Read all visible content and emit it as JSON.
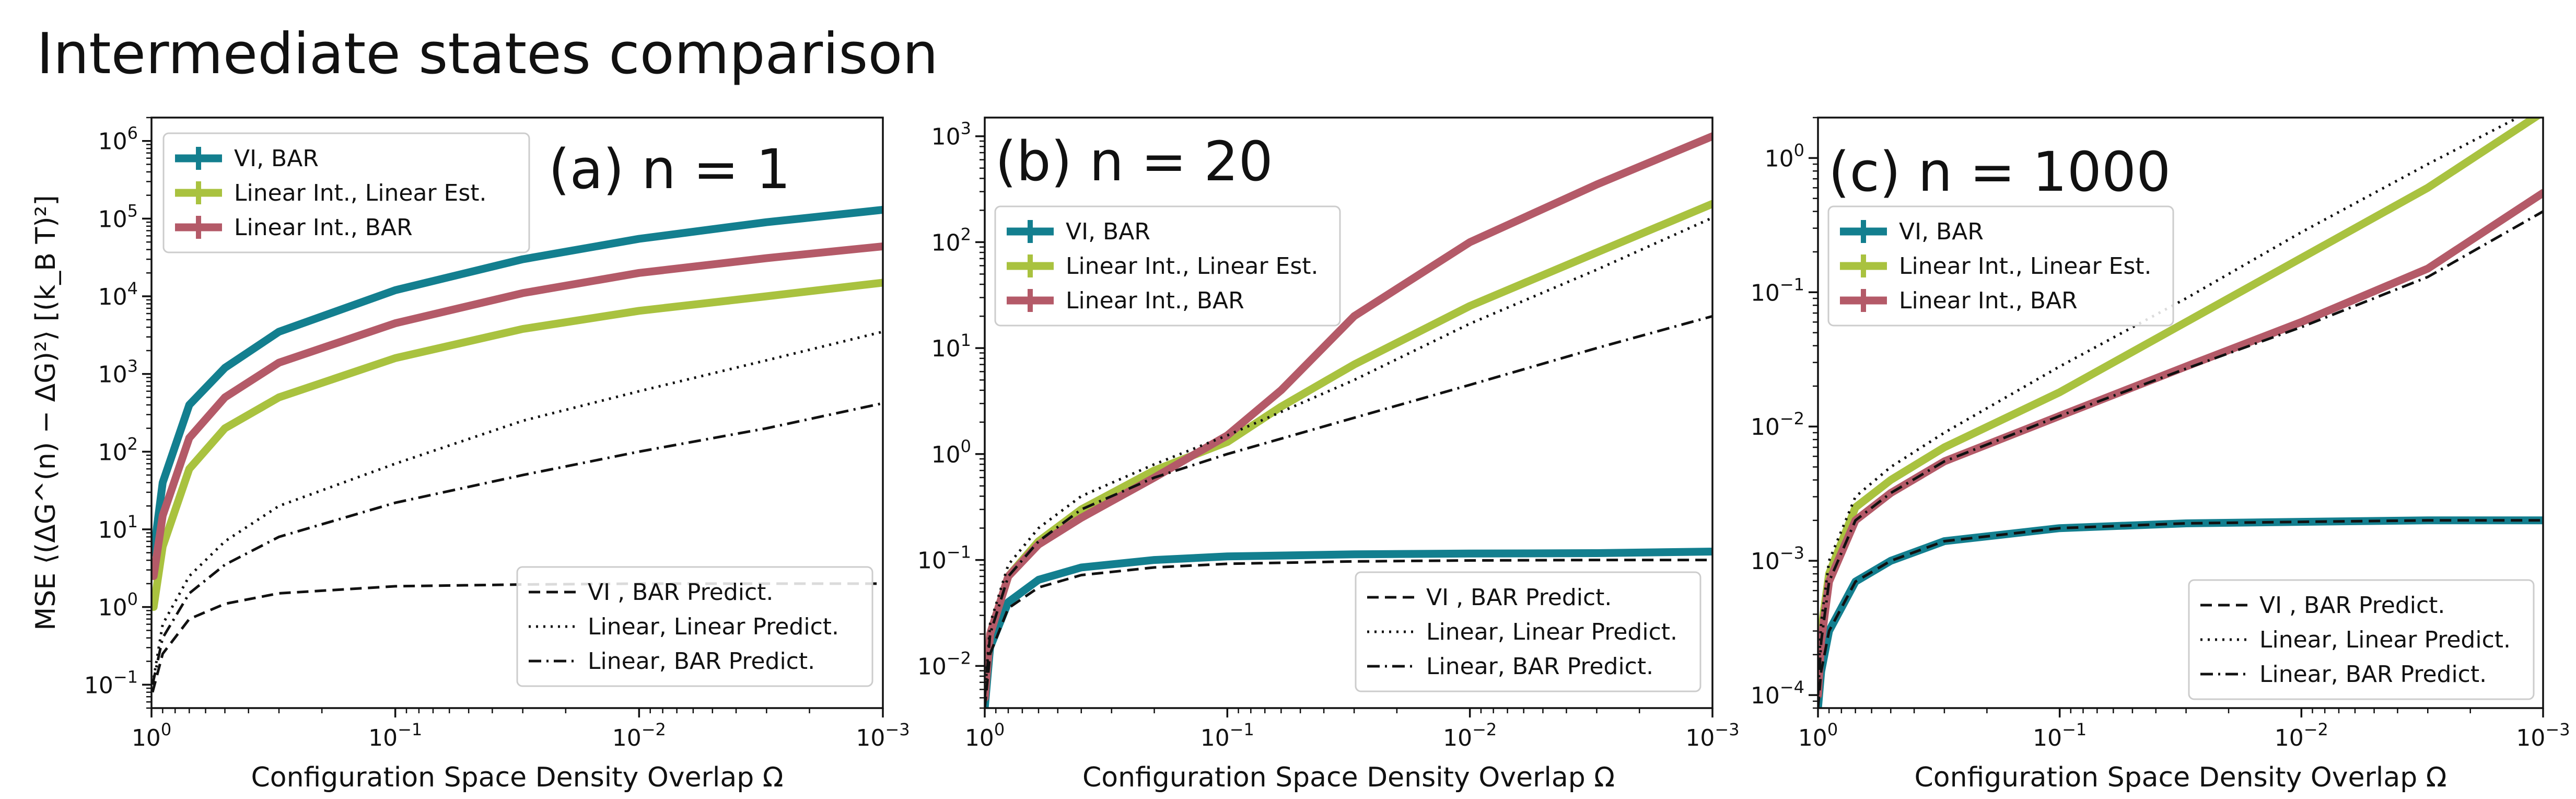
{
  "title": "Intermediate states comparison",
  "chart_data": [
    {
      "type": "line",
      "panel_label": "(a) n = 1",
      "xlabel": "Configuration Space Density Overlap Ω",
      "ylabel": "MSE ⟨(ΔG^(n) − ΔG)²⟩ [(k_B T)²]",
      "x_scale": "log",
      "x_reversed": true,
      "xlim": [
        1,
        0.001
      ],
      "x_ticks": [
        "10^0",
        "10^-1",
        "10^-2",
        "10^-3"
      ],
      "y_scale": "log",
      "ylim": [
        0.05,
        2000000
      ],
      "y_ticks": [
        "10^-1",
        "10^0",
        "10^1",
        "10^2",
        "10^3",
        "10^4",
        "10^5",
        "10^6"
      ],
      "grid": false,
      "legends": [
        {
          "placement": "top-left",
          "entries": [
            "VI, BAR",
            "Linear Int., Linear Est.",
            "Linear Int., BAR"
          ]
        },
        {
          "placement": "bottom-right",
          "entries": [
            "VI , BAR Predict.",
            "Linear, Linear Predict.",
            "Linear, BAR Predict."
          ]
        }
      ],
      "series": [
        {
          "name": "VI, BAR",
          "color": "#137f8f",
          "style": "solid",
          "x": [
            0.98,
            0.9,
            0.7,
            0.5,
            0.3,
            0.1,
            0.03,
            0.01,
            0.003,
            0.001
          ],
          "y": [
            5,
            40,
            400,
            1200,
            3500,
            12000,
            30000,
            55000,
            90000,
            130000
          ]
        },
        {
          "name": "Linear Int., Linear Est.",
          "color": "#a9c23f",
          "style": "solid",
          "x": [
            0.98,
            0.9,
            0.7,
            0.5,
            0.3,
            0.1,
            0.03,
            0.01,
            0.003,
            0.001
          ],
          "y": [
            1,
            6,
            60,
            200,
            500,
            1600,
            3800,
            6500,
            10000,
            15000
          ]
        },
        {
          "name": "Linear Int., BAR",
          "color": "#b45a68",
          "style": "solid",
          "x": [
            0.98,
            0.9,
            0.7,
            0.5,
            0.3,
            0.1,
            0.03,
            0.01,
            0.003,
            0.001
          ],
          "y": [
            2.5,
            15,
            150,
            500,
            1400,
            4500,
            11000,
            20000,
            31000,
            44000
          ]
        },
        {
          "name": "VI , BAR Predict.",
          "color": "#111111",
          "style": "dashed",
          "x": [
            0.99,
            0.9,
            0.7,
            0.5,
            0.3,
            0.1,
            0.03,
            0.01,
            0.003,
            0.001
          ],
          "y": [
            0.08,
            0.25,
            0.7,
            1.1,
            1.5,
            1.85,
            1.95,
            2.0,
            2.0,
            2.0
          ]
        },
        {
          "name": "Linear, Linear Predict.",
          "color": "#111111",
          "style": "dotted",
          "x": [
            0.99,
            0.9,
            0.7,
            0.5,
            0.3,
            0.1,
            0.03,
            0.01,
            0.003,
            0.001
          ],
          "y": [
            0.1,
            0.6,
            2.5,
            7,
            20,
            70,
            250,
            600,
            1500,
            3500
          ]
        },
        {
          "name": "Linear, BAR Predict.",
          "color": "#111111",
          "style": "dashdot",
          "x": [
            0.99,
            0.9,
            0.7,
            0.5,
            0.3,
            0.1,
            0.03,
            0.01,
            0.003,
            0.001
          ],
          "y": [
            0.1,
            0.4,
            1.5,
            3.5,
            8,
            22,
            50,
            100,
            200,
            420
          ]
        }
      ]
    },
    {
      "type": "line",
      "panel_label": "(b) n = 20",
      "xlabel": "Configuration Space Density Overlap Ω",
      "x_scale": "log",
      "x_reversed": true,
      "xlim": [
        1,
        0.001
      ],
      "x_ticks": [
        "10^0",
        "10^-1",
        "10^-2",
        "10^-3"
      ],
      "y_scale": "log",
      "ylim": [
        0.004,
        1500
      ],
      "y_ticks": [
        "10^-2",
        "10^-1",
        "10^0",
        "10^1",
        "10^2",
        "10^3"
      ],
      "grid": false,
      "legends": [
        {
          "placement": "upper-left",
          "entries": [
            "VI, BAR",
            "Linear Int., Linear Est.",
            "Linear Int., BAR"
          ]
        },
        {
          "placement": "bottom-right",
          "entries": [
            "VI , BAR Predict.",
            "Linear, Linear Predict.",
            "Linear, BAR Predict."
          ]
        }
      ],
      "series": [
        {
          "name": "VI, BAR",
          "color": "#137f8f",
          "style": "solid",
          "x": [
            1,
            0.95,
            0.8,
            0.6,
            0.4,
            0.2,
            0.1,
            0.03,
            0.01,
            0.003,
            0.001
          ],
          "y": [
            0.004,
            0.015,
            0.04,
            0.065,
            0.085,
            0.1,
            0.108,
            0.113,
            0.115,
            0.116,
            0.12
          ]
        },
        {
          "name": "Linear Int., Linear Est.",
          "color": "#a9c23f",
          "style": "solid",
          "x": [
            1,
            0.95,
            0.8,
            0.6,
            0.4,
            0.2,
            0.1,
            0.06,
            0.03,
            0.01,
            0.003,
            0.001
          ],
          "y": [
            0.005,
            0.02,
            0.07,
            0.15,
            0.3,
            0.7,
            1.3,
            2.8,
            7,
            25,
            80,
            230
          ]
        },
        {
          "name": "Linear Int., BAR",
          "color": "#b45a68",
          "style": "solid",
          "x": [
            1,
            0.95,
            0.8,
            0.6,
            0.4,
            0.2,
            0.1,
            0.06,
            0.03,
            0.01,
            0.003,
            0.001
          ],
          "y": [
            0.005,
            0.02,
            0.07,
            0.14,
            0.25,
            0.6,
            1.5,
            4,
            20,
            100,
            350,
            1000
          ]
        },
        {
          "name": "VI , BAR Predict.",
          "color": "#111111",
          "style": "dashed",
          "x": [
            1,
            0.95,
            0.8,
            0.6,
            0.4,
            0.2,
            0.1,
            0.03,
            0.01,
            0.003,
            0.001
          ],
          "y": [
            0.004,
            0.013,
            0.035,
            0.055,
            0.072,
            0.085,
            0.092,
            0.097,
            0.099,
            0.1,
            0.1
          ]
        },
        {
          "name": "Linear, Linear Predict.",
          "color": "#111111",
          "style": "dotted",
          "x": [
            1,
            0.95,
            0.8,
            0.6,
            0.4,
            0.2,
            0.1,
            0.03,
            0.01,
            0.003,
            0.001
          ],
          "y": [
            0.005,
            0.025,
            0.09,
            0.2,
            0.4,
            0.8,
            1.5,
            5,
            17,
            55,
            170
          ]
        },
        {
          "name": "Linear, BAR Predict.",
          "color": "#111111",
          "style": "dashdot",
          "x": [
            1,
            0.95,
            0.8,
            0.6,
            0.4,
            0.2,
            0.1,
            0.03,
            0.01,
            0.003,
            0.001
          ],
          "y": [
            0.005,
            0.02,
            0.07,
            0.15,
            0.3,
            0.6,
            1.0,
            2.2,
            4.5,
            10,
            20
          ]
        }
      ]
    },
    {
      "type": "line",
      "panel_label": "(c) n = 1000",
      "xlabel": "Configuration Space Density Overlap Ω",
      "x_scale": "log",
      "x_reversed": true,
      "xlim": [
        1,
        0.001
      ],
      "x_ticks": [
        "10^0",
        "10^-1",
        "10^-2",
        "10^-3"
      ],
      "y_scale": "log",
      "ylim": [
        8e-05,
        2
      ],
      "y_ticks": [
        "10^-4",
        "10^-3",
        "10^-2",
        "10^-1",
        "10^0"
      ],
      "grid": false,
      "legends": [
        {
          "placement": "upper-left",
          "entries": [
            "VI, BAR",
            "Linear Int., Linear Est.",
            "Linear Int., BAR"
          ]
        },
        {
          "placement": "bottom-right",
          "entries": [
            "VI , BAR Predict.",
            "Linear, Linear Predict.",
            "Linear, BAR Predict."
          ]
        }
      ],
      "series": [
        {
          "name": "VI, BAR",
          "color": "#137f8f",
          "style": "solid",
          "x": [
            1,
            0.97,
            0.9,
            0.7,
            0.5,
            0.3,
            0.1,
            0.03,
            0.01,
            0.003,
            0.001
          ],
          "y": [
            8e-05,
            0.00015,
            0.0003,
            0.0007,
            0.001,
            0.0014,
            0.00175,
            0.0019,
            0.00195,
            0.002,
            0.002
          ]
        },
        {
          "name": "Linear Int., Linear Est.",
          "color": "#a9c23f",
          "style": "solid",
          "x": [
            1,
            0.97,
            0.9,
            0.7,
            0.5,
            0.3,
            0.1,
            0.03,
            0.01,
            0.003,
            0.001
          ],
          "y": [
            0.0001,
            0.0003,
            0.0008,
            0.0025,
            0.004,
            0.007,
            0.018,
            0.06,
            0.18,
            0.6,
            2.2
          ]
        },
        {
          "name": "Linear Int., BAR",
          "color": "#b45a68",
          "style": "solid",
          "x": [
            1,
            0.97,
            0.9,
            0.7,
            0.5,
            0.3,
            0.1,
            0.03,
            0.01,
            0.003,
            0.001
          ],
          "y": [
            0.0001,
            0.00025,
            0.0007,
            0.002,
            0.0032,
            0.0055,
            0.012,
            0.028,
            0.06,
            0.15,
            0.55
          ]
        },
        {
          "name": "VI , BAR Predict.",
          "color": "#111111",
          "style": "dashed",
          "x": [
            1,
            0.97,
            0.9,
            0.7,
            0.5,
            0.3,
            0.1,
            0.03,
            0.01,
            0.003,
            0.001
          ],
          "y": [
            8e-05,
            0.00015,
            0.0003,
            0.0007,
            0.001,
            0.0014,
            0.00175,
            0.0019,
            0.00195,
            0.002,
            0.002
          ]
        },
        {
          "name": "Linear, Linear Predict.",
          "color": "#111111",
          "style": "dotted",
          "x": [
            1,
            0.97,
            0.9,
            0.7,
            0.5,
            0.3,
            0.1,
            0.03,
            0.01,
            0.003,
            0.001
          ],
          "y": [
            0.00012,
            0.00035,
            0.001,
            0.003,
            0.005,
            0.009,
            0.028,
            0.09,
            0.28,
            0.9,
            2.5
          ]
        },
        {
          "name": "Linear, BAR Predict.",
          "color": "#111111",
          "style": "dashdot",
          "x": [
            1,
            0.97,
            0.9,
            0.7,
            0.5,
            0.3,
            0.1,
            0.03,
            0.01,
            0.003,
            0.001
          ],
          "y": [
            0.0001,
            0.00025,
            0.0007,
            0.002,
            0.0032,
            0.0055,
            0.012,
            0.027,
            0.055,
            0.13,
            0.4
          ]
        }
      ]
    }
  ]
}
